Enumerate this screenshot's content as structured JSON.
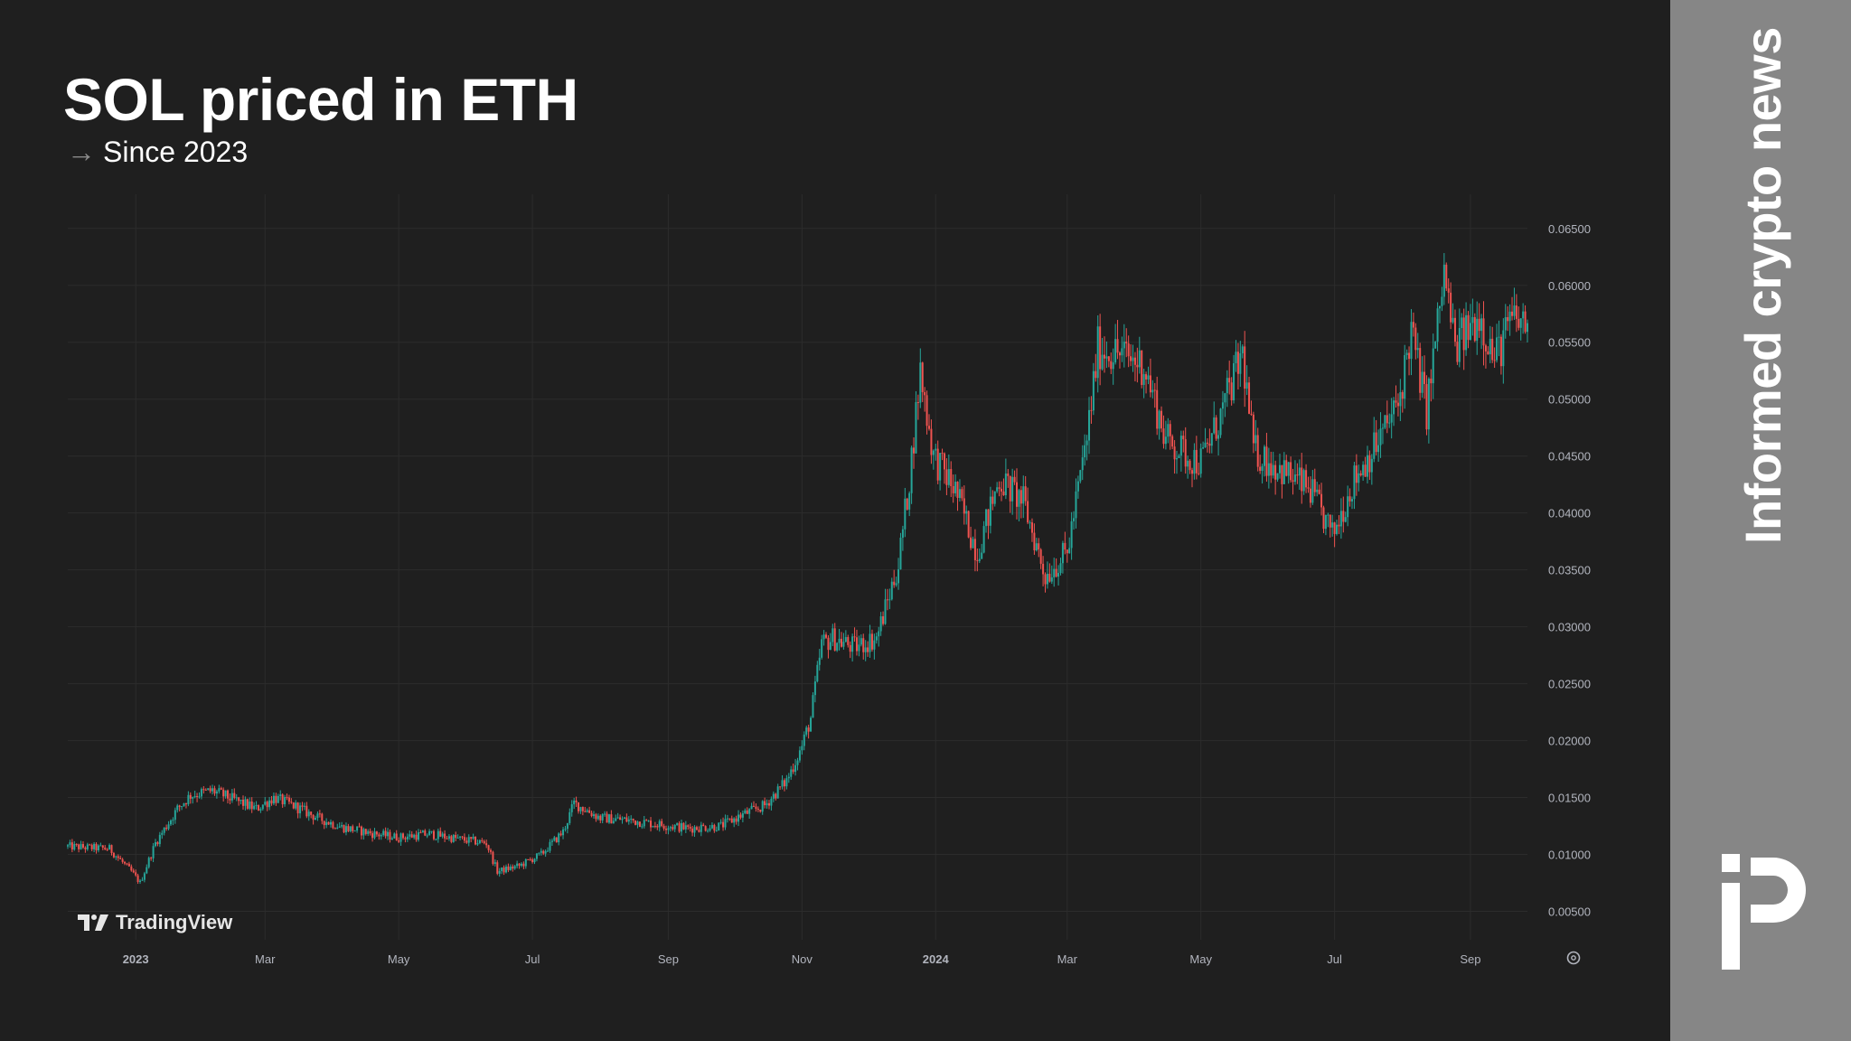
{
  "header": {
    "title": "SOL priced in ETH",
    "subtitle_arrow": "→",
    "subtitle": "Since 2023"
  },
  "watermark": {
    "label": "TradingView",
    "icon": "tradingview-logo-icon"
  },
  "sidebar": {
    "tagline": "Informed crypto news",
    "icon": "protos-logo-icon"
  },
  "colors": {
    "background": "#1f1f1f",
    "sidebar": "#868686",
    "up": "#26a69a",
    "down": "#ef5350",
    "grid": "#2c2c2c",
    "axis_text": "#b2b5be"
  },
  "chart_data": {
    "type": "candlestick",
    "title": "SOL priced in ETH",
    "subtitle": "Since 2023",
    "xlabel": "",
    "ylabel": "",
    "x_range": [
      "2022-12-01",
      "2024-09-27"
    ],
    "ylim": [
      0.0025,
      0.068
    ],
    "y_ticks": [
      "0.00500",
      "0.01000",
      "0.01500",
      "0.02000",
      "0.02500",
      "0.03000",
      "0.03500",
      "0.04000",
      "0.04500",
      "0.05000",
      "0.05500",
      "0.06000",
      "0.06500"
    ],
    "x_ticks": [
      {
        "date": "2023-01-01",
        "label": "2023",
        "bold": true
      },
      {
        "date": "2023-03-01",
        "label": "Mar",
        "bold": false
      },
      {
        "date": "2023-05-01",
        "label": "May",
        "bold": false
      },
      {
        "date": "2023-07-01",
        "label": "Jul",
        "bold": false
      },
      {
        "date": "2023-09-01",
        "label": "Sep",
        "bold": false
      },
      {
        "date": "2023-11-01",
        "label": "Nov",
        "bold": false
      },
      {
        "date": "2024-01-01",
        "label": "2024",
        "bold": true
      },
      {
        "date": "2024-03-01",
        "label": "Mar",
        "bold": false
      },
      {
        "date": "2024-05-01",
        "label": "May",
        "bold": false
      },
      {
        "date": "2024-07-01",
        "label": "Jul",
        "bold": false
      },
      {
        "date": "2024-09-01",
        "label": "Sep",
        "bold": false
      }
    ],
    "grid": true,
    "series": [
      {
        "x_start": "2022-12-01",
        "x_end": "2024-09-27",
        "close_path": [
          [
            "2022-12-01",
            0.0107
          ],
          [
            "2022-12-20",
            0.0105
          ],
          [
            "2022-12-30",
            0.0085
          ],
          [
            "2023-01-03",
            0.0075
          ],
          [
            "2023-01-10",
            0.011
          ],
          [
            "2023-01-20",
            0.014
          ],
          [
            "2023-01-26",
            0.0152
          ],
          [
            "2023-02-05",
            0.0156
          ],
          [
            "2023-02-15",
            0.0148
          ],
          [
            "2023-02-25",
            0.014
          ],
          [
            "2023-03-05",
            0.015
          ],
          [
            "2023-03-15",
            0.0142
          ],
          [
            "2023-03-25",
            0.0132
          ],
          [
            "2023-04-05",
            0.0124
          ],
          [
            "2023-04-20",
            0.0118
          ],
          [
            "2023-05-01",
            0.0115
          ],
          [
            "2023-05-15",
            0.0118
          ],
          [
            "2023-05-30",
            0.0113
          ],
          [
            "2023-06-10",
            0.011
          ],
          [
            "2023-06-15",
            0.0085
          ],
          [
            "2023-06-25",
            0.009
          ],
          [
            "2023-07-05",
            0.01
          ],
          [
            "2023-07-15",
            0.012
          ],
          [
            "2023-07-20",
            0.0145
          ],
          [
            "2023-08-01",
            0.0132
          ],
          [
            "2023-08-15",
            0.013
          ],
          [
            "2023-08-25",
            0.0127
          ],
          [
            "2023-09-10",
            0.0123
          ],
          [
            "2023-09-25",
            0.0125
          ],
          [
            "2023-10-05",
            0.0135
          ],
          [
            "2023-10-15",
            0.0143
          ],
          [
            "2023-10-25",
            0.0165
          ],
          [
            "2023-11-01",
            0.0195
          ],
          [
            "2023-11-05",
            0.022
          ],
          [
            "2023-11-10",
            0.0285
          ],
          [
            "2023-11-15",
            0.029
          ],
          [
            "2023-11-25",
            0.0282
          ],
          [
            "2023-12-05",
            0.029
          ],
          [
            "2023-12-15",
            0.0355
          ],
          [
            "2023-12-20",
            0.043
          ],
          [
            "2023-12-25",
            0.0525
          ],
          [
            "2023-12-31",
            0.045
          ],
          [
            "2024-01-10",
            0.042
          ],
          [
            "2024-01-20",
            0.0365
          ],
          [
            "2024-01-30",
            0.043
          ],
          [
            "2024-02-10",
            0.041
          ],
          [
            "2024-02-20",
            0.0345
          ],
          [
            "2024-03-01",
            0.0365
          ],
          [
            "2024-03-10",
            0.0465
          ],
          [
            "2024-03-15",
            0.0545
          ],
          [
            "2024-03-25",
            0.054
          ],
          [
            "2024-04-05",
            0.053
          ],
          [
            "2024-04-15",
            0.0465
          ],
          [
            "2024-04-25",
            0.045
          ],
          [
            "2024-05-01",
            0.0445
          ],
          [
            "2024-05-10",
            0.0485
          ],
          [
            "2024-05-20",
            0.054
          ],
          [
            "2024-05-25",
            0.0455
          ],
          [
            "2024-06-05",
            0.044
          ],
          [
            "2024-06-20",
            0.042
          ],
          [
            "2024-06-30",
            0.038
          ],
          [
            "2024-07-10",
            0.043
          ],
          [
            "2024-07-20",
            0.046
          ],
          [
            "2024-07-30",
            0.0495
          ],
          [
            "2024-08-05",
            0.056
          ],
          [
            "2024-08-12",
            0.049
          ],
          [
            "2024-08-20",
            0.061
          ],
          [
            "2024-08-25",
            0.0545
          ],
          [
            "2024-09-05",
            0.0575
          ],
          [
            "2024-09-12",
            0.0535
          ],
          [
            "2024-09-20",
            0.057
          ],
          [
            "2024-09-27",
            0.0565
          ]
        ]
      }
    ]
  }
}
